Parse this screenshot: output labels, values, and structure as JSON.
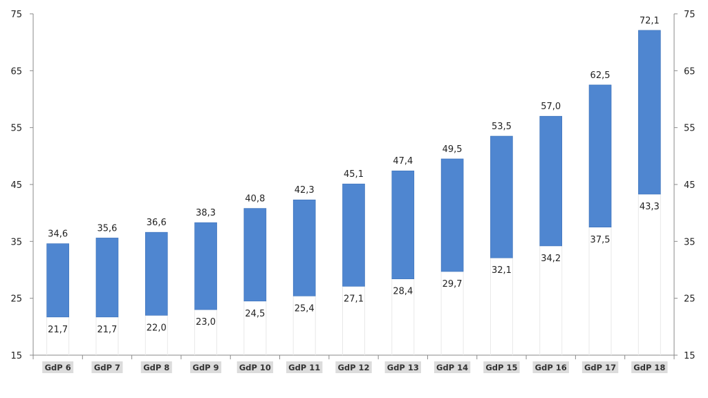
{
  "chart_data": {
    "type": "bar",
    "subtype": "floating-range",
    "categories": [
      "GdP 6",
      "GdP 7",
      "GdP 8",
      "GdP 9",
      "GdP 10",
      "GdP 11",
      "GdP 12",
      "GdP 13",
      "GdP 14",
      "GdP 15",
      "GdP 16",
      "GdP 17",
      "GdP 18"
    ],
    "low": [
      21.7,
      21.7,
      22.0,
      23.0,
      24.5,
      25.4,
      27.1,
      28.4,
      29.7,
      32.1,
      34.2,
      37.5,
      43.3
    ],
    "high": [
      34.6,
      35.6,
      36.6,
      38.3,
      40.8,
      42.3,
      45.1,
      47.4,
      49.5,
      53.5,
      57.0,
      62.5,
      72.1
    ],
    "low_labels": [
      "21,7",
      "21,7",
      "22,0",
      "23,0",
      "24,5",
      "25,4",
      "27,1",
      "28,4",
      "29,7",
      "32,1",
      "34,2",
      "37,5",
      "43,3"
    ],
    "high_labels": [
      "34,6",
      "35,6",
      "36,6",
      "38,3",
      "40,8",
      "42,3",
      "45,1",
      "47,4",
      "49,5",
      "53,5",
      "57,0",
      "62,5",
      "72,1"
    ],
    "ylim": [
      15,
      75
    ],
    "yticks": [
      15,
      25,
      35,
      45,
      55,
      65,
      75
    ],
    "ytick_labels": [
      "15",
      "25",
      "35",
      "45",
      "55",
      "65",
      "75"
    ],
    "title": "",
    "xlabel": "",
    "ylabel": "",
    "dual_y_axis": true,
    "grid": false,
    "bar_color": "#4f86d0"
  }
}
